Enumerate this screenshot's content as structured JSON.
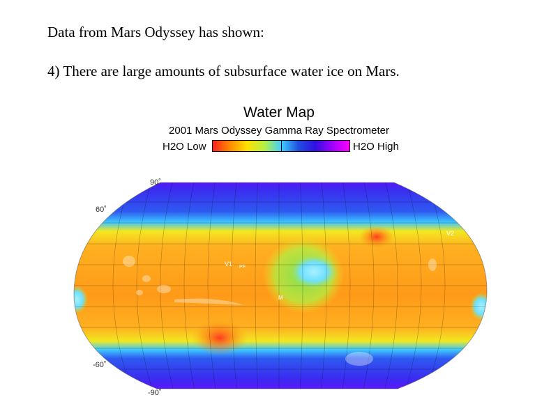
{
  "text": {
    "intro": "Data from Mars Odyssey has shown:",
    "point": "4) There are large amounts of subsurface water ice on Mars."
  },
  "figure": {
    "title": "Water Map",
    "subtitle": "2001 Mars Odyssey Gamma Ray Spectrometer",
    "legend_low": "H2O Low",
    "legend_high": "H2O High",
    "legend_colors": [
      "#ff2020",
      "#ff8a00",
      "#ffe000",
      "#b8f040",
      "#40d0ff",
      "#2050e0",
      "#3010e0",
      "#a000ff",
      "#ff00ff"
    ],
    "lat_labels": {
      "north_pole": "90˚",
      "north": "60˚",
      "south": "-60˚",
      "south_pole": "-90˚"
    },
    "site_labels": {
      "v1": "V1",
      "pf": "PF",
      "m": "M",
      "v2": "V2"
    }
  }
}
